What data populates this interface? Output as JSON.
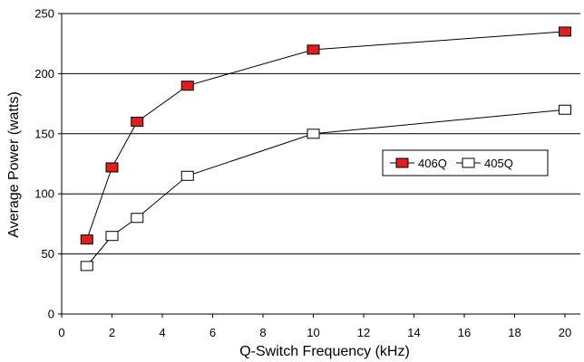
{
  "chart_data": {
    "type": "line",
    "title": "",
    "xlabel": "Q-Switch Frequency (kHz)",
    "ylabel": "Average Power (watts)",
    "xlim": [
      0,
      20
    ],
    "ylim": [
      0,
      250
    ],
    "xticks": [
      "0",
      "2",
      "4",
      "6",
      "8",
      "10",
      "12",
      "14",
      "16",
      "18",
      "20"
    ],
    "yticks": [
      "0",
      "50",
      "100",
      "150",
      "200",
      "250"
    ],
    "grid": "horizontal",
    "legend_position": "right",
    "series": [
      {
        "name": "406Q",
        "marker": "filled-square",
        "fill": "#e11e1e",
        "x": [
          1,
          2,
          3,
          5,
          10,
          20
        ],
        "y": [
          62,
          122,
          160,
          190,
          220,
          235
        ]
      },
      {
        "name": "405Q",
        "marker": "hollow-square",
        "fill": "#ffffff",
        "x": [
          1,
          2,
          3,
          5,
          10,
          20
        ],
        "y": [
          40,
          65,
          80,
          115,
          150,
          170
        ]
      }
    ]
  }
}
